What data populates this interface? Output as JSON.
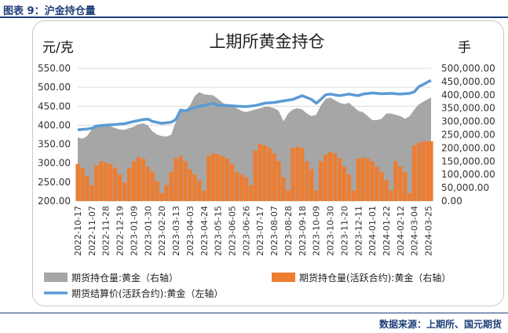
{
  "figure_label": "图表 9：沪金持仓量",
  "source": "数据来源：上期所、国元期货",
  "chart_data": {
    "type": "combo-area-bar-line",
    "title": "上期所黄金持仓",
    "left_axis": {
      "unit": "元/克",
      "min": 200,
      "max": 550,
      "step": 50,
      "ticks": [
        "200.00",
        "250.00",
        "300.00",
        "350.00",
        "400.00",
        "450.00",
        "500.00",
        "550.00"
      ]
    },
    "right_axis": {
      "unit": "手",
      "min": 0,
      "max": 500000,
      "step": 50000,
      "ticks": [
        "0.00",
        "50,000.00",
        "100,000.00",
        "150,000.00",
        "200,000.00",
        "250,000.00",
        "300,000.00",
        "350,000.00",
        "400,000.00",
        "450,000.00",
        "500,000.00"
      ]
    },
    "x_ticks": [
      "2022-10-17",
      "2022-11-07",
      "2022-11-28",
      "2022-12-19",
      "2023-01-09",
      "2023-01-30",
      "2023-02-20",
      "2023-03-13",
      "2023-04-03",
      "2023-04-24",
      "2023-05-15",
      "2023-06-05",
      "2023-06-26",
      "2023-07-17",
      "2023-08-07",
      "2023-08-28",
      "2023-09-18",
      "2023-10-09",
      "2023-10-30",
      "2023-11-20",
      "2023-12-11",
      "2024-01-01",
      "2024-01-22",
      "2024-02-12",
      "2024-03-04",
      "2024-03-25"
    ],
    "legend": [
      "期货持仓量:黄金（右轴）",
      "期货持仓量(活跃合约):黄金（右轴）",
      "期货结算价(活跃合约):黄金（左轴）"
    ],
    "series": [
      {
        "name": "期货持仓量:黄金（右轴）",
        "axis": "right",
        "style": "area",
        "color": "#a6a6a6",
        "points": [
          [
            "2022-10-17",
            240000
          ],
          [
            "2022-10-24",
            235000
          ],
          [
            "2022-10-31",
            245000
          ],
          [
            "2022-11-07",
            270000
          ],
          [
            "2022-11-14",
            285000
          ],
          [
            "2022-11-21",
            290000
          ],
          [
            "2022-11-28",
            288000
          ],
          [
            "2022-12-05",
            282000
          ],
          [
            "2022-12-12",
            275000
          ],
          [
            "2022-12-19",
            270000
          ],
          [
            "2022-12-26",
            268000
          ],
          [
            "2023-01-02",
            275000
          ],
          [
            "2023-01-09",
            280000
          ],
          [
            "2023-01-16",
            290000
          ],
          [
            "2023-01-23",
            292000
          ],
          [
            "2023-01-30",
            285000
          ],
          [
            "2023-02-06",
            262000
          ],
          [
            "2023-02-13",
            250000
          ],
          [
            "2023-02-20",
            245000
          ],
          [
            "2023-02-27",
            243000
          ],
          [
            "2023-03-06",
            250000
          ],
          [
            "2023-03-13",
            300000
          ],
          [
            "2023-03-20",
            335000
          ],
          [
            "2023-03-27",
            340000
          ],
          [
            "2023-04-03",
            360000
          ],
          [
            "2023-04-10",
            395000
          ],
          [
            "2023-04-17",
            410000
          ],
          [
            "2023-04-24",
            402000
          ],
          [
            "2023-05-01",
            400000
          ],
          [
            "2023-05-08",
            398000
          ],
          [
            "2023-05-15",
            385000
          ],
          [
            "2023-05-22",
            370000
          ],
          [
            "2023-05-29",
            362000
          ],
          [
            "2023-06-05",
            358000
          ],
          [
            "2023-06-12",
            350000
          ],
          [
            "2023-06-19",
            340000
          ],
          [
            "2023-06-26",
            335000
          ],
          [
            "2023-07-03",
            340000
          ],
          [
            "2023-07-10",
            345000
          ],
          [
            "2023-07-17",
            350000
          ],
          [
            "2023-07-24",
            355000
          ],
          [
            "2023-07-31",
            355000
          ],
          [
            "2023-08-07",
            350000
          ],
          [
            "2023-08-14",
            340000
          ],
          [
            "2023-08-21",
            300000
          ],
          [
            "2023-08-28",
            330000
          ],
          [
            "2023-09-04",
            345000
          ],
          [
            "2023-09-11",
            350000
          ],
          [
            "2023-09-18",
            345000
          ],
          [
            "2023-09-25",
            330000
          ],
          [
            "2023-10-02",
            320000
          ],
          [
            "2023-10-09",
            325000
          ],
          [
            "2023-10-16",
            360000
          ],
          [
            "2023-10-23",
            385000
          ],
          [
            "2023-10-30",
            390000
          ],
          [
            "2023-11-06",
            380000
          ],
          [
            "2023-11-13",
            370000
          ],
          [
            "2023-11-20",
            365000
          ],
          [
            "2023-11-27",
            370000
          ],
          [
            "2023-12-04",
            355000
          ],
          [
            "2023-12-11",
            340000
          ],
          [
            "2023-12-18",
            335000
          ],
          [
            "2023-12-25",
            320000
          ],
          [
            "2024-01-01",
            305000
          ],
          [
            "2024-01-08",
            305000
          ],
          [
            "2024-01-15",
            310000
          ],
          [
            "2024-01-22",
            330000
          ],
          [
            "2024-01-29",
            330000
          ],
          [
            "2024-02-05",
            325000
          ],
          [
            "2024-02-12",
            320000
          ],
          [
            "2024-02-19",
            310000
          ],
          [
            "2024-02-26",
            320000
          ],
          [
            "2024-03-04",
            345000
          ],
          [
            "2024-03-11",
            365000
          ],
          [
            "2024-03-18",
            375000
          ],
          [
            "2024-03-25",
            385000
          ],
          [
            "2024-03-29",
            390000
          ]
        ]
      },
      {
        "name": "期货持仓量(活跃合约):黄金（右轴）",
        "axis": "right",
        "style": "bar",
        "color": "#ed7d31",
        "points": [
          [
            "2022-10-17",
            140000
          ],
          [
            "2022-10-24",
            125000
          ],
          [
            "2022-10-31",
            95000
          ],
          [
            "2022-11-07",
            60000
          ],
          [
            "2022-11-14",
            135000
          ],
          [
            "2022-11-21",
            150000
          ],
          [
            "2022-11-28",
            145000
          ],
          [
            "2022-12-05",
            140000
          ],
          [
            "2022-12-12",
            125000
          ],
          [
            "2022-12-19",
            100000
          ],
          [
            "2022-12-26",
            70000
          ],
          [
            "2023-01-02",
            125000
          ],
          [
            "2023-01-09",
            150000
          ],
          [
            "2023-01-16",
            165000
          ],
          [
            "2023-01-23",
            160000
          ],
          [
            "2023-01-30",
            130000
          ],
          [
            "2023-02-06",
            110000
          ],
          [
            "2023-02-13",
            75000
          ],
          [
            "2023-02-20",
            30000
          ],
          [
            "2023-02-27",
            60000
          ],
          [
            "2023-03-06",
            110000
          ],
          [
            "2023-03-13",
            160000
          ],
          [
            "2023-03-20",
            170000
          ],
          [
            "2023-03-27",
            150000
          ],
          [
            "2023-04-03",
            120000
          ],
          [
            "2023-04-10",
            100000
          ],
          [
            "2023-04-17",
            80000
          ],
          [
            "2023-04-24",
            40000
          ],
          [
            "2023-05-01",
            170000
          ],
          [
            "2023-05-08",
            180000
          ],
          [
            "2023-05-15",
            175000
          ],
          [
            "2023-05-22",
            170000
          ],
          [
            "2023-05-29",
            160000
          ],
          [
            "2023-06-05",
            140000
          ],
          [
            "2023-06-12",
            110000
          ],
          [
            "2023-06-19",
            100000
          ],
          [
            "2023-06-26",
            90000
          ],
          [
            "2023-07-03",
            60000
          ],
          [
            "2023-07-10",
            190000
          ],
          [
            "2023-07-17",
            215000
          ],
          [
            "2023-07-24",
            210000
          ],
          [
            "2023-07-31",
            200000
          ],
          [
            "2023-08-07",
            180000
          ],
          [
            "2023-08-14",
            150000
          ],
          [
            "2023-08-21",
            90000
          ],
          [
            "2023-08-28",
            40000
          ],
          [
            "2023-09-04",
            200000
          ],
          [
            "2023-09-11",
            205000
          ],
          [
            "2023-09-18",
            200000
          ],
          [
            "2023-09-25",
            150000
          ],
          [
            "2023-10-02",
            120000
          ],
          [
            "2023-10-09",
            40000
          ],
          [
            "2023-10-16",
            150000
          ],
          [
            "2023-10-23",
            175000
          ],
          [
            "2023-10-30",
            185000
          ],
          [
            "2023-11-06",
            180000
          ],
          [
            "2023-11-13",
            160000
          ],
          [
            "2023-11-20",
            130000
          ],
          [
            "2023-11-27",
            100000
          ],
          [
            "2023-12-04",
            40000
          ],
          [
            "2023-12-11",
            160000
          ],
          [
            "2023-12-18",
            165000
          ],
          [
            "2023-12-25",
            160000
          ],
          [
            "2024-01-01",
            150000
          ],
          [
            "2024-01-08",
            130000
          ],
          [
            "2024-01-15",
            110000
          ],
          [
            "2024-01-22",
            80000
          ],
          [
            "2024-01-29",
            40000
          ],
          [
            "2024-02-05",
            150000
          ],
          [
            "2024-02-12",
            130000
          ],
          [
            "2024-02-19",
            110000
          ],
          [
            "2024-02-26",
            30000
          ],
          [
            "2024-03-04",
            210000
          ],
          [
            "2024-03-11",
            220000
          ],
          [
            "2024-03-18",
            225000
          ],
          [
            "2024-03-25",
            225000
          ],
          [
            "2024-03-29",
            225000
          ]
        ]
      },
      {
        "name": "期货结算价(活跃合约):黄金（左轴）",
        "axis": "left",
        "style": "line",
        "color": "#5b9bd5",
        "points": [
          [
            "2022-10-17",
            388
          ],
          [
            "2022-10-31",
            390
          ],
          [
            "2022-11-07",
            392
          ],
          [
            "2022-11-14",
            398
          ],
          [
            "2022-11-28",
            400
          ],
          [
            "2022-12-12",
            402
          ],
          [
            "2022-12-26",
            404
          ],
          [
            "2023-01-09",
            410
          ],
          [
            "2023-01-23",
            415
          ],
          [
            "2023-01-30",
            416
          ],
          [
            "2023-02-06",
            410
          ],
          [
            "2023-02-20",
            405
          ],
          [
            "2023-03-06",
            408
          ],
          [
            "2023-03-13",
            415
          ],
          [
            "2023-03-20",
            440
          ],
          [
            "2023-03-27",
            438
          ],
          [
            "2023-04-10",
            447
          ],
          [
            "2023-04-24",
            452
          ],
          [
            "2023-05-08",
            458
          ],
          [
            "2023-05-15",
            452
          ],
          [
            "2023-05-29",
            452
          ],
          [
            "2023-06-12",
            450
          ],
          [
            "2023-06-26",
            449
          ],
          [
            "2023-07-10",
            452
          ],
          [
            "2023-07-24",
            458
          ],
          [
            "2023-08-07",
            460
          ],
          [
            "2023-08-21",
            464
          ],
          [
            "2023-09-04",
            468
          ],
          [
            "2023-09-18",
            478
          ],
          [
            "2023-10-02",
            468
          ],
          [
            "2023-10-09",
            458
          ],
          [
            "2023-10-16",
            468
          ],
          [
            "2023-10-23",
            480
          ],
          [
            "2023-10-30",
            482
          ],
          [
            "2023-11-13",
            478
          ],
          [
            "2023-11-27",
            482
          ],
          [
            "2023-12-11",
            478
          ],
          [
            "2023-12-18",
            482
          ],
          [
            "2024-01-01",
            485
          ],
          [
            "2024-01-15",
            483
          ],
          [
            "2024-01-29",
            484
          ],
          [
            "2024-02-12",
            482
          ],
          [
            "2024-02-26",
            484
          ],
          [
            "2024-03-04",
            488
          ],
          [
            "2024-03-11",
            502
          ],
          [
            "2024-03-18",
            508
          ],
          [
            "2024-03-25",
            515
          ],
          [
            "2024-03-29",
            518
          ]
        ]
      }
    ]
  }
}
